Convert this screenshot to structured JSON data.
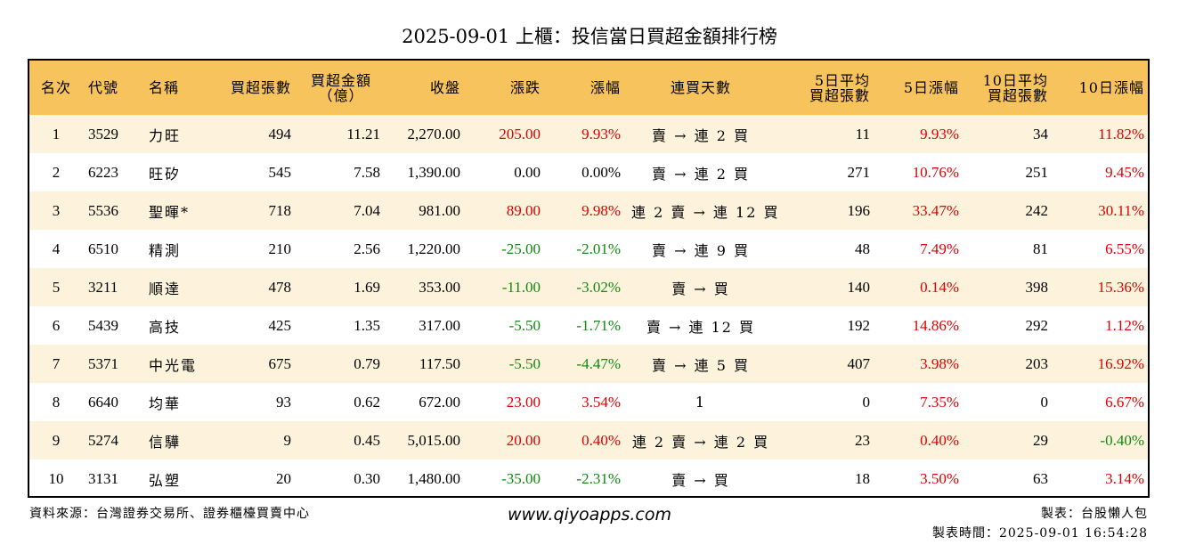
{
  "title": "2025-09-01 上櫃：投信當日買超金額排行榜",
  "headers": [
    {
      "line1": "名次",
      "line2": "",
      "align": "c"
    },
    {
      "line1": "代號",
      "line2": "",
      "align": "l"
    },
    {
      "line1": "名稱",
      "line2": "",
      "align": "l"
    },
    {
      "line1": "買超張數",
      "line2": "",
      "align": "r"
    },
    {
      "line1": "買超金額",
      "line2": "（億）",
      "align": "c"
    },
    {
      "line1": "收盤",
      "line2": "",
      "align": "r"
    },
    {
      "line1": "漲跌",
      "line2": "",
      "align": "r"
    },
    {
      "line1": "漲幅",
      "line2": "",
      "align": "r"
    },
    {
      "line1": "連買天數",
      "line2": "",
      "align": "c"
    },
    {
      "line1": "5日平均",
      "line2": "買超張數",
      "align": "r"
    },
    {
      "line1": "5日漲幅",
      "line2": "",
      "align": "r"
    },
    {
      "line1": "10日平均",
      "line2": "買超張數",
      "align": "r"
    },
    {
      "line1": "10日漲幅",
      "line2": "",
      "align": "r"
    }
  ],
  "rows": [
    {
      "rank": "1",
      "code": "3529",
      "name": "力旺",
      "buy_lots": "494",
      "buy_amount": "11.21",
      "close": "2,270.00",
      "change": "205.00",
      "change_pct": "9.93%",
      "consec": "賣 → 連 2 買",
      "avg5": "11",
      "pct5": "9.93%",
      "avg10": "34",
      "pct10": "11.82%",
      "change_color": "red",
      "pct5_color": "red",
      "pct10_color": "red"
    },
    {
      "rank": "2",
      "code": "6223",
      "name": "旺矽",
      "buy_lots": "545",
      "buy_amount": "7.58",
      "close": "1,390.00",
      "change": "0.00",
      "change_pct": "0.00%",
      "consec": "賣 → 連 2 買",
      "avg5": "271",
      "pct5": "10.76%",
      "avg10": "251",
      "pct10": "9.45%",
      "change_color": "neutral",
      "pct5_color": "red",
      "pct10_color": "red"
    },
    {
      "rank": "3",
      "code": "5536",
      "name": "聖暉*",
      "buy_lots": "718",
      "buy_amount": "7.04",
      "close": "981.00",
      "change": "89.00",
      "change_pct": "9.98%",
      "consec": "連 2 賣 → 連 12 買",
      "avg5": "196",
      "pct5": "33.47%",
      "avg10": "242",
      "pct10": "30.11%",
      "change_color": "red",
      "pct5_color": "red",
      "pct10_color": "red"
    },
    {
      "rank": "4",
      "code": "6510",
      "name": "精測",
      "buy_lots": "210",
      "buy_amount": "2.56",
      "close": "1,220.00",
      "change": "-25.00",
      "change_pct": "-2.01%",
      "consec": "賣 → 連 9 買",
      "avg5": "48",
      "pct5": "7.49%",
      "avg10": "81",
      "pct10": "6.55%",
      "change_color": "green",
      "pct5_color": "red",
      "pct10_color": "red"
    },
    {
      "rank": "5",
      "code": "3211",
      "name": "順達",
      "buy_lots": "478",
      "buy_amount": "1.69",
      "close": "353.00",
      "change": "-11.00",
      "change_pct": "-3.02%",
      "consec": "賣 → 買",
      "avg5": "140",
      "pct5": "0.14%",
      "avg10": "398",
      "pct10": "15.36%",
      "change_color": "green",
      "pct5_color": "red",
      "pct10_color": "red"
    },
    {
      "rank": "6",
      "code": "5439",
      "name": "高技",
      "buy_lots": "425",
      "buy_amount": "1.35",
      "close": "317.00",
      "change": "-5.50",
      "change_pct": "-1.71%",
      "consec": "賣 → 連 12 買",
      "avg5": "192",
      "pct5": "14.86%",
      "avg10": "292",
      "pct10": "1.12%",
      "change_color": "green",
      "pct5_color": "red",
      "pct10_color": "red"
    },
    {
      "rank": "7",
      "code": "5371",
      "name": "中光電",
      "buy_lots": "675",
      "buy_amount": "0.79",
      "close": "117.50",
      "change": "-5.50",
      "change_pct": "-4.47%",
      "consec": "賣 → 連 5 買",
      "avg5": "407",
      "pct5": "3.98%",
      "avg10": "203",
      "pct10": "16.92%",
      "change_color": "green",
      "pct5_color": "red",
      "pct10_color": "red"
    },
    {
      "rank": "8",
      "code": "6640",
      "name": "均華",
      "buy_lots": "93",
      "buy_amount": "0.62",
      "close": "672.00",
      "change": "23.00",
      "change_pct": "3.54%",
      "consec": "1",
      "avg5": "0",
      "pct5": "7.35%",
      "avg10": "0",
      "pct10": "6.67%",
      "change_color": "red",
      "pct5_color": "red",
      "pct10_color": "red"
    },
    {
      "rank": "9",
      "code": "5274",
      "name": "信驊",
      "buy_lots": "9",
      "buy_amount": "0.45",
      "close": "5,015.00",
      "change": "20.00",
      "change_pct": "0.40%",
      "consec": "連 2 賣 → 連 2 買",
      "avg5": "23",
      "pct5": "0.40%",
      "avg10": "29",
      "pct10": "-0.40%",
      "change_color": "red",
      "pct5_color": "red",
      "pct10_color": "green"
    },
    {
      "rank": "10",
      "code": "3131",
      "name": "弘塑",
      "buy_lots": "20",
      "buy_amount": "0.30",
      "close": "1,480.00",
      "change": "-35.00",
      "change_pct": "-2.31%",
      "consec": "賣 → 買",
      "avg5": "18",
      "pct5": "3.50%",
      "avg10": "63",
      "pct10": "3.14%",
      "change_color": "green",
      "pct5_color": "red",
      "pct10_color": "red"
    }
  ],
  "colors": {
    "header_bg": "#f7c35c",
    "odd_row_bg": "#fdf3dc",
    "even_row_bg": "#ffffff",
    "up": "#e00000",
    "down": "#108a10"
  },
  "footer": {
    "source": "資料來源：台灣證券交易所、證券櫃檯買賣中心",
    "website": "www.qiyoapps.com",
    "maker": "製表：台股懶人包",
    "made_time": "製表時間：2025-09-01 16:54:28"
  }
}
